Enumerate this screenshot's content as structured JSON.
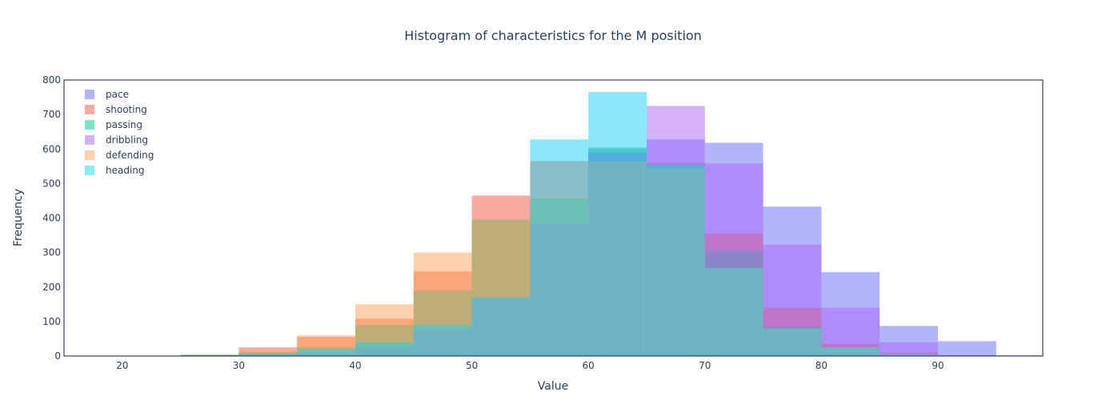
{
  "chart_data": {
    "type": "bar",
    "title": "Histogram of characteristics for the M position",
    "xlabel": "Value",
    "ylabel": "Frequency",
    "xlim": [
      15,
      99
    ],
    "ylim": [
      0,
      800
    ],
    "x_ticks": [
      20,
      30,
      40,
      50,
      60,
      70,
      80,
      90
    ],
    "y_ticks": [
      0,
      100,
      200,
      300,
      400,
      500,
      600,
      700,
      800
    ],
    "bin_starts": [
      25,
      30,
      35,
      40,
      45,
      50,
      55,
      60,
      65,
      70,
      75,
      80,
      85,
      90,
      95
    ],
    "bin_width": 5,
    "legend_position": "top-left",
    "series": [
      {
        "name": "pace",
        "color": "#636efa",
        "values": [
          0,
          0,
          5,
          25,
          80,
          165,
          385,
          590,
          628,
          618,
          433,
          243,
          87,
          43,
          2
        ]
      },
      {
        "name": "shooting",
        "color": "#ef553b",
        "values": [
          2,
          25,
          55,
          108,
          245,
          465,
          565,
          600,
          560,
          355,
          140,
          35,
          10,
          0,
          0
        ]
      },
      {
        "name": "passing",
        "color": "#00cc96",
        "values": [
          3,
          10,
          25,
          90,
          190,
          395,
          455,
          605,
          555,
          305,
          85,
          25,
          5,
          0,
          0
        ]
      },
      {
        "name": "dribbling",
        "color": "#ab63fa",
        "values": [
          1,
          3,
          8,
          25,
          80,
          165,
          385,
          590,
          725,
          558,
          323,
          140,
          40,
          3,
          0
        ]
      },
      {
        "name": "defending",
        "color": "#ffa15a",
        "values": [
          5,
          15,
          60,
          150,
          300,
          395,
          460,
          565,
          545,
          255,
          80,
          25,
          5,
          0,
          0
        ]
      },
      {
        "name": "heading",
        "color": "#19d3f3",
        "values": [
          3,
          8,
          20,
          40,
          90,
          170,
          628,
          765,
          555,
          255,
          80,
          25,
          5,
          0,
          0
        ]
      }
    ]
  }
}
